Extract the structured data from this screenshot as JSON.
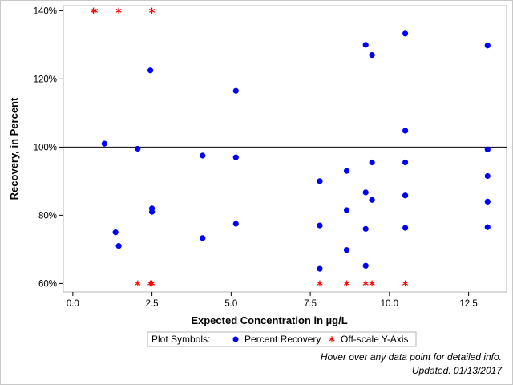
{
  "chart_data": {
    "type": "scatter",
    "xlabel": "Expected Concentration in µg/L",
    "ylabel": "Recovery, in Percent",
    "xlim": [
      -0.3,
      13.7
    ],
    "ylim": [
      57.5,
      141.5
    ],
    "x_ticks": [
      0,
      2.5,
      5,
      7.5,
      10,
      12.5
    ],
    "x_tick_labels": [
      "0.0",
      "2.5",
      "5.0",
      "7.5",
      "10.0",
      "12.5"
    ],
    "y_ticks": [
      60,
      80,
      100,
      120,
      140
    ],
    "y_tick_labels": [
      "60%",
      "80%",
      "100%",
      "120%",
      "140%"
    ],
    "reference_line": 100,
    "grid": false,
    "legend_title": "Plot Symbols:",
    "legend_placement": "bottom-center",
    "colors": {
      "recovery": "#0000ff",
      "offscale": "#ff0000",
      "reference_line": "#000000"
    },
    "series": [
      {
        "name": "Percent Recovery",
        "marker": "circle",
        "points": [
          [
            1.0,
            101
          ],
          [
            1.35,
            75
          ],
          [
            1.45,
            71
          ],
          [
            2.05,
            99.5
          ],
          [
            2.45,
            122.5
          ],
          [
            2.5,
            82
          ],
          [
            2.5,
            81
          ],
          [
            4.1,
            97.5
          ],
          [
            4.1,
            73.3
          ],
          [
            5.15,
            116.5
          ],
          [
            5.15,
            97
          ],
          [
            5.15,
            77.5
          ],
          [
            7.8,
            90
          ],
          [
            7.8,
            77
          ],
          [
            7.8,
            64.3
          ],
          [
            8.65,
            93
          ],
          [
            8.65,
            81.5
          ],
          [
            8.65,
            69.8
          ],
          [
            9.25,
            130
          ],
          [
            9.25,
            86.7
          ],
          [
            9.25,
            76
          ],
          [
            9.25,
            65.2
          ],
          [
            9.45,
            127
          ],
          [
            9.45,
            95.5
          ],
          [
            9.45,
            84.5
          ],
          [
            10.5,
            133.3
          ],
          [
            10.5,
            104.8
          ],
          [
            10.5,
            95.5
          ],
          [
            10.5,
            85.8
          ],
          [
            10.5,
            76.3
          ],
          [
            13.1,
            129.8
          ],
          [
            13.1,
            99.3
          ],
          [
            13.1,
            91.5
          ],
          [
            13.1,
            84
          ],
          [
            13.1,
            76.5
          ]
        ]
      },
      {
        "name": "Off-scale Y-Axis",
        "marker": "asterisk",
        "points": [
          [
            0.65,
            140
          ],
          [
            0.7,
            140
          ],
          [
            1.45,
            140
          ],
          [
            2.5,
            140
          ],
          [
            2.05,
            60
          ],
          [
            2.45,
            60
          ],
          [
            2.5,
            60
          ],
          [
            7.8,
            60
          ],
          [
            8.65,
            60
          ],
          [
            9.25,
            60
          ],
          [
            9.45,
            60
          ],
          [
            10.5,
            60
          ]
        ]
      }
    ]
  },
  "footer": {
    "hover_note": "Hover over any data point for detailed info.",
    "updated": "Updated: 01/13/2017"
  }
}
